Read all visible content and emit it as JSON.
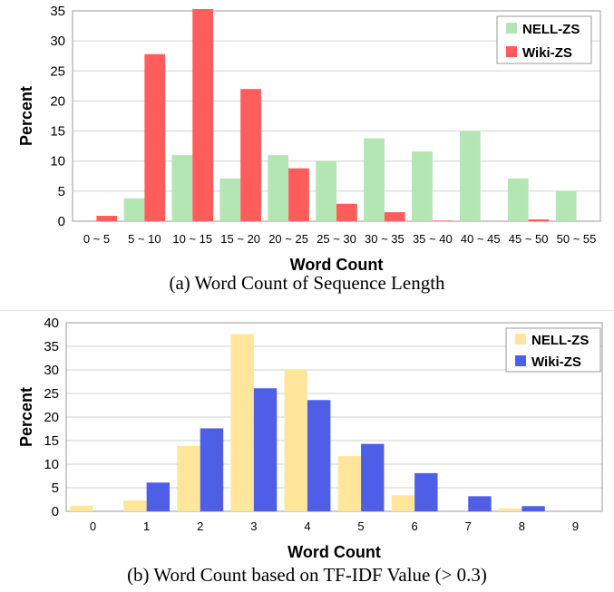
{
  "chart_data": [
    {
      "type": "bar",
      "caption": "(a)  Word Count of Sequence Length",
      "xlabel": "Word Count",
      "ylabel": "Percent",
      "ylim": [
        0,
        35
      ],
      "yticks": [
        0,
        5,
        10,
        15,
        20,
        25,
        30,
        35
      ],
      "grid": true,
      "legend": "top-right",
      "categories": [
        "0 ~ 5",
        "5 ~ 10",
        "10 ~ 15",
        "15 ~ 20",
        "20 ~ 25",
        "25 ~ 30",
        "30 ~ 35",
        "35 ~ 40",
        "40 ~ 45",
        "45 ~ 50",
        "50 ~ 55"
      ],
      "series": [
        {
          "name": "NELL-ZS",
          "color": "#b3e6b3",
          "values": [
            0,
            3.8,
            11,
            7.1,
            11,
            10,
            13.8,
            11.6,
            15,
            7.1,
            5
          ]
        },
        {
          "name": "Wiki-ZS",
          "color": "#ff5c5c",
          "values": [
            0.9,
            27.8,
            35.3,
            22,
            8.8,
            2.9,
            1.5,
            0.1,
            0,
            0.3,
            0
          ]
        }
      ]
    },
    {
      "type": "bar",
      "caption": "(b)  Word Count based on TF-IDF Value (> 0.3)",
      "xlabel": "Word Count",
      "ylabel": "Percent",
      "ylim": [
        0,
        40
      ],
      "yticks": [
        0,
        5,
        10,
        15,
        20,
        25,
        30,
        35,
        40
      ],
      "grid": true,
      "legend": "top-right",
      "categories": [
        "0",
        "1",
        "2",
        "3",
        "4",
        "5",
        "6",
        "7",
        "8",
        "9"
      ],
      "series": [
        {
          "name": "NELL-ZS",
          "color": "#ffe69a",
          "values": [
            1.2,
            2.3,
            13.9,
            37.6,
            30,
            11.7,
            3.4,
            0,
            0.6,
            0
          ]
        },
        {
          "name": "Wiki-ZS",
          "color": "#4f5ee6",
          "values": [
            0,
            6.1,
            17.6,
            26.1,
            23.6,
            14.3,
            8.1,
            3.2,
            1.1,
            0
          ]
        }
      ]
    }
  ]
}
